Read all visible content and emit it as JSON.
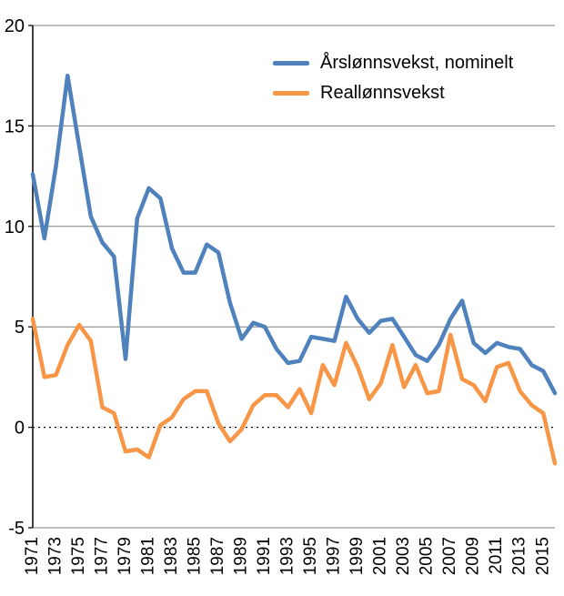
{
  "chart_data": {
    "type": "line",
    "title": "",
    "xlabel": "",
    "ylabel": "",
    "ylim": [
      -5,
      20
    ],
    "yticks": [
      -5,
      0,
      5,
      10,
      15,
      20
    ],
    "grid": "horizontal",
    "zero_line_style": "dotted",
    "legend_position": "inside-top-right",
    "x": [
      1971,
      1972,
      1973,
      1974,
      1975,
      1976,
      1977,
      1978,
      1979,
      1980,
      1981,
      1982,
      1983,
      1984,
      1985,
      1986,
      1987,
      1988,
      1989,
      1990,
      1991,
      1992,
      1993,
      1994,
      1995,
      1996,
      1997,
      1998,
      1999,
      2000,
      2001,
      2002,
      2003,
      2004,
      2005,
      2006,
      2007,
      2008,
      2009,
      2010,
      2011,
      2012,
      2013,
      2014,
      2015,
      2016
    ],
    "x_tick_labels": [
      "1971",
      "1973",
      "1975",
      "1977",
      "1979",
      "1981",
      "1983",
      "1985",
      "1987",
      "1989",
      "1991",
      "1993",
      "1995",
      "1997",
      "1999",
      "2001",
      "2003",
      "2005",
      "2007",
      "2009",
      "2011",
      "2013",
      "2015"
    ],
    "series": [
      {
        "name": "Årslønnsvekst, nominelt",
        "color": "#4f81bd",
        "values": [
          12.6,
          9.4,
          13.0,
          17.5,
          14.0,
          10.5,
          9.2,
          8.5,
          3.4,
          10.4,
          11.9,
          11.4,
          8.9,
          7.7,
          7.7,
          9.1,
          8.7,
          6.2,
          4.4,
          5.2,
          5.0,
          3.9,
          3.2,
          3.3,
          4.5,
          4.4,
          4.3,
          6.5,
          5.4,
          4.7,
          5.3,
          5.4,
          4.5,
          3.6,
          3.3,
          4.1,
          5.4,
          6.3,
          4.2,
          3.7,
          4.2,
          4.0,
          3.9,
          3.1,
          2.8,
          1.7
        ]
      },
      {
        "name": "Reallønnsvekst",
        "color": "#f79646",
        "values": [
          5.4,
          2.5,
          2.6,
          4.1,
          5.1,
          4.3,
          1.0,
          0.7,
          -1.2,
          -1.1,
          -1.5,
          0.1,
          0.5,
          1.4,
          1.8,
          1.8,
          0.2,
          -0.7,
          -0.1,
          1.1,
          1.6,
          1.6,
          1.0,
          1.9,
          0.7,
          3.1,
          2.1,
          4.2,
          3.0,
          1.4,
          2.2,
          4.1,
          2.0,
          3.1,
          1.7,
          1.8,
          4.6,
          2.4,
          2.1,
          1.3,
          3.0,
          3.2,
          1.8,
          1.1,
          0.7,
          -1.8
        ]
      }
    ],
    "colors": {
      "grid": "#808080",
      "axis": "#000000",
      "background": "#ffffff"
    }
  }
}
